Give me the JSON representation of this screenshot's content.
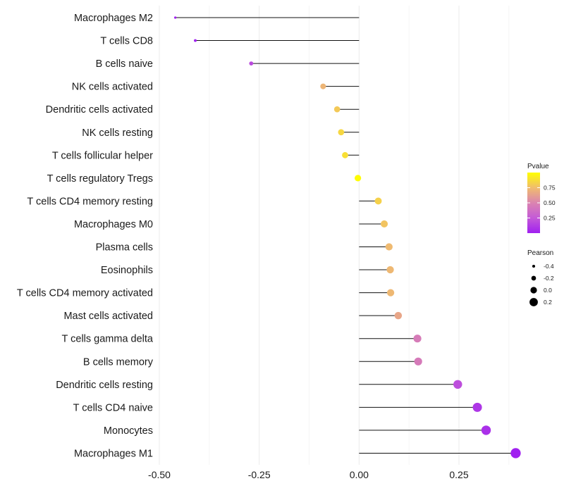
{
  "chart_data": {
    "type": "lollipop",
    "title": "",
    "xlabel": "",
    "ylabel": "",
    "xlim": [
      -0.5,
      0.4
    ],
    "x_ticks": [
      "-0.50",
      "-0.25",
      "0.00",
      "0.25"
    ],
    "x_tick_values": [
      -0.5,
      -0.25,
      0,
      0.25
    ],
    "baseline": 0,
    "grid": true,
    "categories": [
      "Macrophages M2",
      "T cells CD8",
      "B cells naive",
      "NK cells activated",
      "Dendritic cells activated",
      "NK cells resting",
      "T cells follicular helper",
      "T cells regulatory  Tregs ",
      "T cells CD4 memory resting",
      "Macrophages M0",
      "Plasma cells",
      "Eosinophils",
      "T cells CD4 memory activated",
      "Mast cells activated",
      "T cells gamma delta",
      "B cells memory",
      "Dendritic cells resting",
      "T cells CD4 naive",
      "Monocytes",
      "Macrophages M1"
    ],
    "pearson": [
      -0.46,
      -0.41,
      -0.27,
      -0.09,
      -0.055,
      -0.045,
      -0.035,
      -0.003,
      0.048,
      0.063,
      0.075,
      0.078,
      0.079,
      0.098,
      0.146,
      0.148,
      0.247,
      0.296,
      0.318,
      0.392
    ],
    "pvalue": [
      0.0,
      0.0,
      0.18,
      0.72,
      0.8,
      0.85,
      0.88,
      0.99,
      0.83,
      0.78,
      0.74,
      0.73,
      0.73,
      0.65,
      0.45,
      0.44,
      0.2,
      0.1,
      0.07,
      0.0
    ],
    "legend": {
      "placement": "right",
      "color": {
        "title": "Pvalue",
        "range": [
          0,
          1
        ],
        "ticks": [
          0.25,
          0.5,
          0.75
        ],
        "tick_labels": [
          "0.25",
          "0.50",
          "0.75"
        ],
        "low_color": "#a020f0",
        "high_color": "#ffff00"
      },
      "size": {
        "title": "Pearson",
        "range": [
          -0.5,
          0.4
        ],
        "values": [
          -0.4,
          -0.2,
          0.0,
          0.2
        ],
        "labels": [
          "-0.4",
          "-0.2",
          "0.0",
          "0.2"
        ]
      }
    }
  }
}
